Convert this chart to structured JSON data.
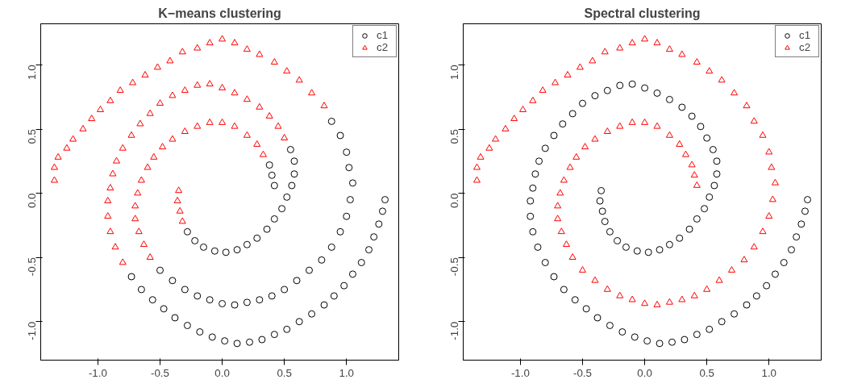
{
  "chart_data": [
    {
      "type": "scatter",
      "title": "K−means clustering",
      "xlim": [
        -1.46,
        1.42
      ],
      "ylim": [
        -1.3,
        1.32
      ],
      "xticks": [
        {
          "value": -1,
          "label": "-1.0"
        },
        {
          "value": -0.5,
          "label": "-0.5"
        },
        {
          "value": 0,
          "label": "0.0"
        },
        {
          "value": 0.5,
          "label": "0.5"
        },
        {
          "value": 1,
          "label": "1.0"
        }
      ],
      "yticks": [
        {
          "value": -1,
          "label": "-1.0"
        },
        {
          "value": -0.5,
          "label": "-0.5"
        },
        {
          "value": 0,
          "label": "0.0"
        },
        {
          "value": 0.5,
          "label": "0.5"
        },
        {
          "value": 1,
          "label": "1.0"
        }
      ],
      "grid": false,
      "legend": "top right",
      "series": [
        {
          "name": "c1",
          "color": "#000000",
          "marker": "circle",
          "x": [
            -0.28,
            -0.22,
            -0.15,
            -0.06,
            0.03,
            0.12,
            0.2,
            0.28,
            0.36,
            0.42,
            0.48,
            0.52,
            0.56,
            0.58,
            0.58,
            0.55,
            -0.73,
            -0.65,
            -0.56,
            -0.47,
            -0.38,
            -0.28,
            -0.18,
            -0.08,
            0.02,
            0.12,
            0.22,
            0.32,
            0.42,
            0.52,
            0.62,
            0.72,
            0.82,
            0.9,
            0.98,
            1.05,
            1.12,
            1.18,
            1.22,
            1.26,
            1.29,
            1.31,
            0.88,
            0.95,
            1.0,
            1.02,
            1.05,
            1.03,
            1.0,
            0.95,
            0.88,
            0.8,
            0.7,
            0.6,
            0.5,
            0.4,
            0.3,
            0.2,
            0.1,
            0.0,
            -0.1,
            -0.2,
            -0.3,
            -0.4,
            -0.5,
            0.38,
            0.4,
            0.42
          ],
          "values": [
            -0.3,
            -0.37,
            -0.42,
            -0.45,
            -0.46,
            -0.44,
            -0.4,
            -0.35,
            -0.28,
            -0.2,
            -0.12,
            -0.03,
            0.06,
            0.15,
            0.25,
            0.34,
            -0.65,
            -0.75,
            -0.83,
            -0.9,
            -0.97,
            -1.03,
            -1.08,
            -1.12,
            -1.15,
            -1.17,
            -1.16,
            -1.14,
            -1.1,
            -1.06,
            -1.0,
            -0.94,
            -0.87,
            -0.8,
            -0.72,
            -0.63,
            -0.54,
            -0.44,
            -0.34,
            -0.24,
            -0.14,
            -0.05,
            0.56,
            0.45,
            0.32,
            0.2,
            0.08,
            -0.05,
            -0.18,
            -0.3,
            -0.42,
            -0.52,
            -0.6,
            -0.68,
            -0.75,
            -0.8,
            -0.83,
            -0.85,
            -0.87,
            -0.86,
            -0.83,
            -0.8,
            -0.75,
            -0.68,
            -0.6,
            0.22,
            0.14,
            0.06
          ]
        },
        {
          "name": "c2",
          "color": "#ff0000",
          "marker": "triangle",
          "x": [
            -0.35,
            -0.36,
            -0.34,
            -0.32,
            0.5,
            0.45,
            0.38,
            0.3,
            0.2,
            0.1,
            0.0,
            -0.1,
            -0.2,
            -0.3,
            -0.4,
            -0.5,
            -0.58,
            -0.66,
            -0.73,
            -0.8,
            -0.85,
            -0.88,
            -0.9,
            -0.92,
            -0.92,
            -0.9,
            -0.86,
            -0.8,
            -1.35,
            -1.35,
            -1.32,
            -1.25,
            -1.2,
            -1.12,
            -1.05,
            -0.98,
            -0.9,
            -0.82,
            -0.72,
            -0.62,
            -0.52,
            -0.42,
            -0.32,
            -0.2,
            -0.1,
            0.0,
            0.1,
            0.2,
            0.3,
            0.42,
            0.52,
            0.62,
            0.72,
            0.82,
            -0.58,
            -0.63,
            -0.67,
            -0.7,
            -0.7,
            -0.68,
            -0.65,
            -0.6,
            -0.55,
            -0.48,
            -0.4,
            -0.3,
            -0.2,
            -0.1,
            0.0,
            0.1,
            0.2,
            0.28,
            0.33
          ],
          "values": [
            0.02,
            -0.06,
            -0.14,
            -0.22,
            0.43,
            0.52,
            0.6,
            0.67,
            0.73,
            0.78,
            0.82,
            0.85,
            0.84,
            0.8,
            0.76,
            0.7,
            0.62,
            0.54,
            0.45,
            0.35,
            0.25,
            0.15,
            0.04,
            -0.06,
            -0.18,
            -0.3,
            -0.42,
            -0.54,
            0.1,
            0.2,
            0.28,
            0.35,
            0.42,
            0.5,
            0.58,
            0.65,
            0.72,
            0.8,
            0.86,
            0.92,
            0.98,
            1.03,
            1.1,
            1.13,
            1.17,
            1.2,
            1.17,
            1.12,
            1.08,
            1.02,
            0.95,
            0.88,
            0.78,
            0.68,
            -0.5,
            -0.4,
            -0.3,
            -0.2,
            -0.1,
            0.0,
            0.1,
            0.2,
            0.28,
            0.36,
            0.42,
            0.48,
            0.52,
            0.55,
            0.55,
            0.52,
            0.45,
            0.38,
            0.3
          ]
        }
      ]
    },
    {
      "type": "scatter",
      "title": "Spectral clustering",
      "xlim": [
        -1.46,
        1.42
      ],
      "ylim": [
        -1.3,
        1.32
      ],
      "xticks": [
        {
          "value": -1,
          "label": "-1.0"
        },
        {
          "value": -0.5,
          "label": "-0.5"
        },
        {
          "value": 0,
          "label": "0.0"
        },
        {
          "value": 0.5,
          "label": "0.5"
        },
        {
          "value": 1,
          "label": "1.0"
        }
      ],
      "yticks": [
        {
          "value": -1,
          "label": "-1.0"
        },
        {
          "value": -0.5,
          "label": "-0.5"
        },
        {
          "value": 0,
          "label": "0.0"
        },
        {
          "value": 0.5,
          "label": "0.5"
        },
        {
          "value": 1,
          "label": "1.0"
        }
      ],
      "grid": false,
      "legend": "top right",
      "series": [
        {
          "name": "c1",
          "color": "#000000",
          "marker": "circle",
          "x": [
            -0.35,
            -0.36,
            -0.34,
            -0.32,
            -0.28,
            -0.22,
            -0.15,
            -0.06,
            0.03,
            0.12,
            0.2,
            0.28,
            0.36,
            0.42,
            0.48,
            0.52,
            0.56,
            0.58,
            0.58,
            0.55,
            0.5,
            0.45,
            0.38,
            0.3,
            0.2,
            0.1,
            0.0,
            -0.1,
            -0.2,
            -0.3,
            -0.4,
            -0.5,
            -0.58,
            -0.66,
            -0.73,
            -0.8,
            -0.85,
            -0.88,
            -0.9,
            -0.92,
            -0.92,
            -0.9,
            -0.86,
            -0.8,
            -0.73,
            -0.65,
            -0.56,
            -0.47,
            -0.38,
            -0.28,
            -0.18,
            -0.08,
            0.02,
            0.12,
            0.22,
            0.32,
            0.42,
            0.52,
            0.62,
            0.72,
            0.82,
            0.9,
            0.98,
            1.05,
            1.12,
            1.18,
            1.22,
            1.26,
            1.29,
            1.31
          ],
          "values": [
            0.02,
            -0.06,
            -0.14,
            -0.22,
            -0.3,
            -0.37,
            -0.42,
            -0.45,
            -0.46,
            -0.44,
            -0.4,
            -0.35,
            -0.28,
            -0.2,
            -0.12,
            -0.03,
            0.06,
            0.15,
            0.25,
            0.34,
            0.43,
            0.52,
            0.6,
            0.67,
            0.73,
            0.78,
            0.82,
            0.85,
            0.84,
            0.8,
            0.76,
            0.7,
            0.62,
            0.54,
            0.45,
            0.35,
            0.25,
            0.15,
            0.04,
            -0.06,
            -0.18,
            -0.3,
            -0.42,
            -0.54,
            -0.65,
            -0.75,
            -0.83,
            -0.9,
            -0.97,
            -1.03,
            -1.08,
            -1.12,
            -1.15,
            -1.17,
            -1.16,
            -1.14,
            -1.1,
            -1.06,
            -1.0,
            -0.94,
            -0.87,
            -0.8,
            -0.72,
            -0.63,
            -0.54,
            -0.44,
            -0.34,
            -0.24,
            -0.14,
            -0.05
          ]
        },
        {
          "name": "c2",
          "color": "#ff0000",
          "marker": "triangle",
          "x": [
            -1.35,
            -1.35,
            -1.32,
            -1.25,
            -1.2,
            -1.12,
            -1.05,
            -0.98,
            -0.9,
            -0.82,
            -0.72,
            -0.62,
            -0.52,
            -0.42,
            -0.32,
            -0.2,
            -0.1,
            0.0,
            0.1,
            0.2,
            0.3,
            0.42,
            0.52,
            0.62,
            0.72,
            0.82,
            0.88,
            0.95,
            1.0,
            1.02,
            1.05,
            1.03,
            1.0,
            0.95,
            0.88,
            0.8,
            0.7,
            0.6,
            0.5,
            0.4,
            0.3,
            0.2,
            0.1,
            0.0,
            -0.1,
            -0.2,
            -0.3,
            -0.4,
            -0.5,
            -0.58,
            -0.63,
            -0.67,
            -0.7,
            -0.7,
            -0.68,
            -0.65,
            -0.6,
            -0.55,
            -0.48,
            -0.4,
            -0.3,
            -0.2,
            -0.1,
            0.0,
            0.1,
            0.2,
            0.28,
            0.33,
            0.38,
            0.4,
            0.42
          ],
          "values": [
            0.1,
            0.2,
            0.28,
            0.35,
            0.42,
            0.5,
            0.58,
            0.65,
            0.72,
            0.8,
            0.86,
            0.92,
            0.98,
            1.03,
            1.1,
            1.13,
            1.17,
            1.2,
            1.17,
            1.12,
            1.08,
            1.02,
            0.95,
            0.88,
            0.78,
            0.68,
            0.56,
            0.45,
            0.32,
            0.2,
            0.08,
            -0.05,
            -0.18,
            -0.3,
            -0.42,
            -0.52,
            -0.6,
            -0.68,
            -0.75,
            -0.8,
            -0.83,
            -0.85,
            -0.87,
            -0.86,
            -0.83,
            -0.8,
            -0.75,
            -0.68,
            -0.6,
            -0.5,
            -0.4,
            -0.3,
            -0.2,
            -0.1,
            0.0,
            0.1,
            0.2,
            0.28,
            0.36,
            0.42,
            0.48,
            0.52,
            0.55,
            0.55,
            0.52,
            0.45,
            0.38,
            0.3,
            0.22,
            0.14,
            0.06
          ]
        }
      ]
    }
  ]
}
